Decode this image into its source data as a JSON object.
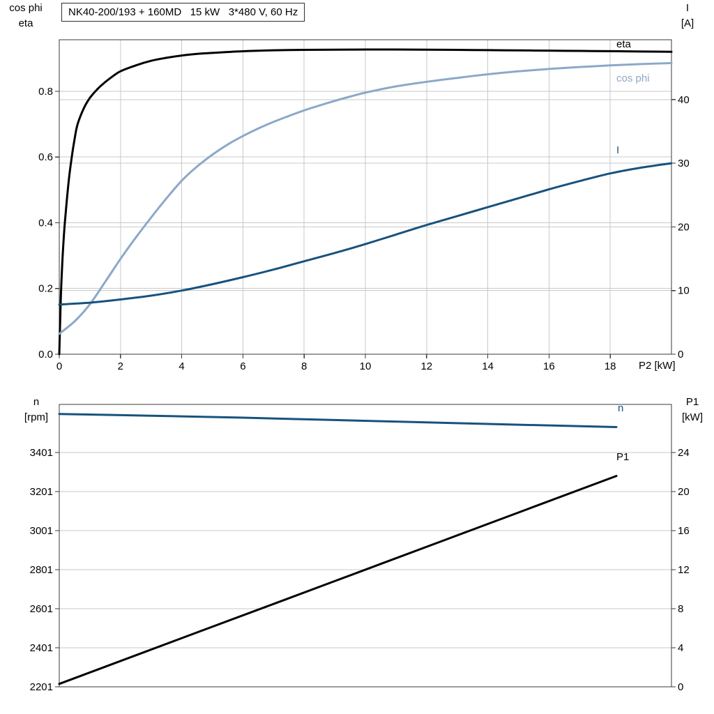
{
  "colors": {
    "black_curve": "#000000",
    "cos_phi": "#8ca8c8",
    "dark_blue": "#17527d",
    "grid": "#c9c9c9",
    "axis": "#3a3a3a",
    "text": "#000000",
    "background": "#ffffff"
  },
  "chart_data": [
    {
      "type": "line",
      "title": "NK40-200/193 + 160MD   15 kW   3*480 V, 60 Hz",
      "x_axis": {
        "label": "P2 [kW]",
        "range": [
          0,
          20
        ],
        "grid": true,
        "ticks": [
          {
            "v": 0,
            "label": "0"
          },
          {
            "v": 2,
            "label": "2"
          },
          {
            "v": 4,
            "label": "4"
          },
          {
            "v": 6,
            "label": "6"
          },
          {
            "v": 8,
            "label": "8"
          },
          {
            "v": 10,
            "label": "10"
          },
          {
            "v": 12,
            "label": "12"
          },
          {
            "v": 14,
            "label": "14"
          },
          {
            "v": 16,
            "label": "16"
          },
          {
            "v": 18,
            "label": "18"
          }
        ]
      },
      "left_axis": {
        "header": [
          "cos phi",
          "eta"
        ],
        "range": [
          0,
          0.957
        ],
        "ticks": [
          {
            "v": 0.0,
            "label": "0.0"
          },
          {
            "v": 0.2,
            "label": "0.2"
          },
          {
            "v": 0.4,
            "label": "0.4"
          },
          {
            "v": 0.6,
            "label": "0.6"
          },
          {
            "v": 0.8,
            "label": "0.8"
          }
        ]
      },
      "right_axis": {
        "header": [
          "I",
          "[A]"
        ],
        "range": [
          0,
          49.4
        ],
        "ticks": [
          {
            "v": 0,
            "label": "0"
          },
          {
            "v": 10,
            "label": "10"
          },
          {
            "v": 20,
            "label": "20"
          },
          {
            "v": 30,
            "label": "30"
          },
          {
            "v": 40,
            "label": "40"
          }
        ]
      },
      "series": [
        {
          "name": "eta",
          "axis": "left",
          "color_key": "black_curve",
          "points": [
            [
              0,
              0
            ],
            [
              0.05,
              0.17
            ],
            [
              0.1,
              0.28
            ],
            [
              0.15,
              0.36
            ],
            [
              0.2,
              0.42
            ],
            [
              0.3,
              0.52
            ],
            [
              0.4,
              0.595
            ],
            [
              0.5,
              0.655
            ],
            [
              0.6,
              0.7
            ],
            [
              0.8,
              0.748
            ],
            [
              1,
              0.78
            ],
            [
              1.25,
              0.807
            ],
            [
              1.5,
              0.828
            ],
            [
              1.75,
              0.846
            ],
            [
              2,
              0.861
            ],
            [
              2.5,
              0.879
            ],
            [
              3,
              0.893
            ],
            [
              3.5,
              0.902
            ],
            [
              4,
              0.909
            ],
            [
              4.5,
              0.914
            ],
            [
              5,
              0.917
            ],
            [
              6,
              0.922
            ],
            [
              7,
              0.925
            ],
            [
              8,
              0.9262
            ],
            [
              9,
              0.9269
            ],
            [
              10,
              0.9272
            ],
            [
              11,
              0.9272
            ],
            [
              12,
              0.9268
            ],
            [
              13,
              0.9262
            ],
            [
              14,
              0.9254
            ],
            [
              15,
              0.9246
            ],
            [
              16,
              0.9238
            ],
            [
              17,
              0.923
            ],
            [
              18,
              0.9222
            ],
            [
              19,
              0.9212
            ],
            [
              20,
              0.9202
            ]
          ]
        },
        {
          "name": "cos phi",
          "axis": "left",
          "color_key": "cos_phi",
          "points": [
            [
              0,
              0.062
            ],
            [
              0.5,
              0.1
            ],
            [
              1,
              0.152
            ],
            [
              1.5,
              0.22
            ],
            [
              2,
              0.29
            ],
            [
              2.5,
              0.355
            ],
            [
              3,
              0.416
            ],
            [
              3.5,
              0.474
            ],
            [
              4,
              0.528
            ],
            [
              4.5,
              0.571
            ],
            [
              5,
              0.607
            ],
            [
              5.5,
              0.638
            ],
            [
              6,
              0.664
            ],
            [
              6.5,
              0.687
            ],
            [
              7,
              0.707
            ],
            [
              7.5,
              0.725
            ],
            [
              8,
              0.742
            ],
            [
              8.5,
              0.757
            ],
            [
              9,
              0.771
            ],
            [
              9.5,
              0.784
            ],
            [
              10,
              0.796
            ],
            [
              11,
              0.815
            ],
            [
              12,
              0.829
            ],
            [
              13,
              0.841
            ],
            [
              14,
              0.852
            ],
            [
              15,
              0.861
            ],
            [
              16,
              0.868
            ],
            [
              17,
              0.874
            ],
            [
              18,
              0.879
            ],
            [
              19,
              0.883
            ],
            [
              20,
              0.886
            ]
          ]
        },
        {
          "name": "I",
          "axis": "right",
          "color_key": "dark_blue",
          "points": [
            [
              0,
              7.8
            ],
            [
              1,
              8.1
            ],
            [
              2,
              8.6
            ],
            [
              3,
              9.2
            ],
            [
              4,
              10
            ],
            [
              5,
              11
            ],
            [
              6,
              12.1
            ],
            [
              7,
              13.3
            ],
            [
              8,
              14.6
            ],
            [
              9,
              15.9
            ],
            [
              10,
              17.3
            ],
            [
              11,
              18.8
            ],
            [
              12,
              20.3
            ],
            [
              13,
              21.7
            ],
            [
              14,
              23.1
            ],
            [
              15,
              24.5
            ],
            [
              16,
              25.9
            ],
            [
              17,
              27.2
            ],
            [
              18,
              28.4
            ],
            [
              19,
              29.3
            ],
            [
              20,
              30
            ]
          ]
        }
      ]
    },
    {
      "type": "line",
      "title": "",
      "x_axis": {
        "label": "",
        "range": [
          0,
          20
        ],
        "grid": false,
        "ticks": []
      },
      "left_axis": {
        "header": [
          "n",
          "[rpm]"
        ],
        "range": [
          2201,
          3647
        ],
        "ticks": [
          {
            "v": 2201,
            "label": "2201"
          },
          {
            "v": 2401,
            "label": "2401"
          },
          {
            "v": 2601,
            "label": "2601"
          },
          {
            "v": 2801,
            "label": "2801"
          },
          {
            "v": 3001,
            "label": "3001"
          },
          {
            "v": 3201,
            "label": "3201"
          },
          {
            "v": 3401,
            "label": "3401"
          }
        ]
      },
      "right_axis": {
        "header": [
          "P1",
          "[kW]"
        ],
        "range": [
          0,
          28.93
        ],
        "ticks": [
          {
            "v": 0,
            "label": "0"
          },
          {
            "v": 4,
            "label": "4"
          },
          {
            "v": 8,
            "label": "8"
          },
          {
            "v": 12,
            "label": "12"
          },
          {
            "v": 16,
            "label": "16"
          },
          {
            "v": 20,
            "label": "20"
          },
          {
            "v": 24,
            "label": "24"
          }
        ]
      },
      "series": [
        {
          "name": "n",
          "axis": "left",
          "color_key": "dark_blue",
          "points": [
            [
              0,
              3598
            ],
            [
              3,
              3589
            ],
            [
              6,
              3579
            ],
            [
              9,
              3567
            ],
            [
              12,
              3555
            ],
            [
              15,
              3543
            ],
            [
              18.2,
              3531
            ]
          ]
        },
        {
          "name": "P1",
          "axis": "right",
          "color_key": "black_curve",
          "points": [
            [
              0,
              0.3
            ],
            [
              4.5,
              5.57
            ],
            [
              9,
              10.83
            ],
            [
              13.5,
              16.1
            ],
            [
              18.2,
              21.6
            ]
          ]
        }
      ]
    }
  ]
}
